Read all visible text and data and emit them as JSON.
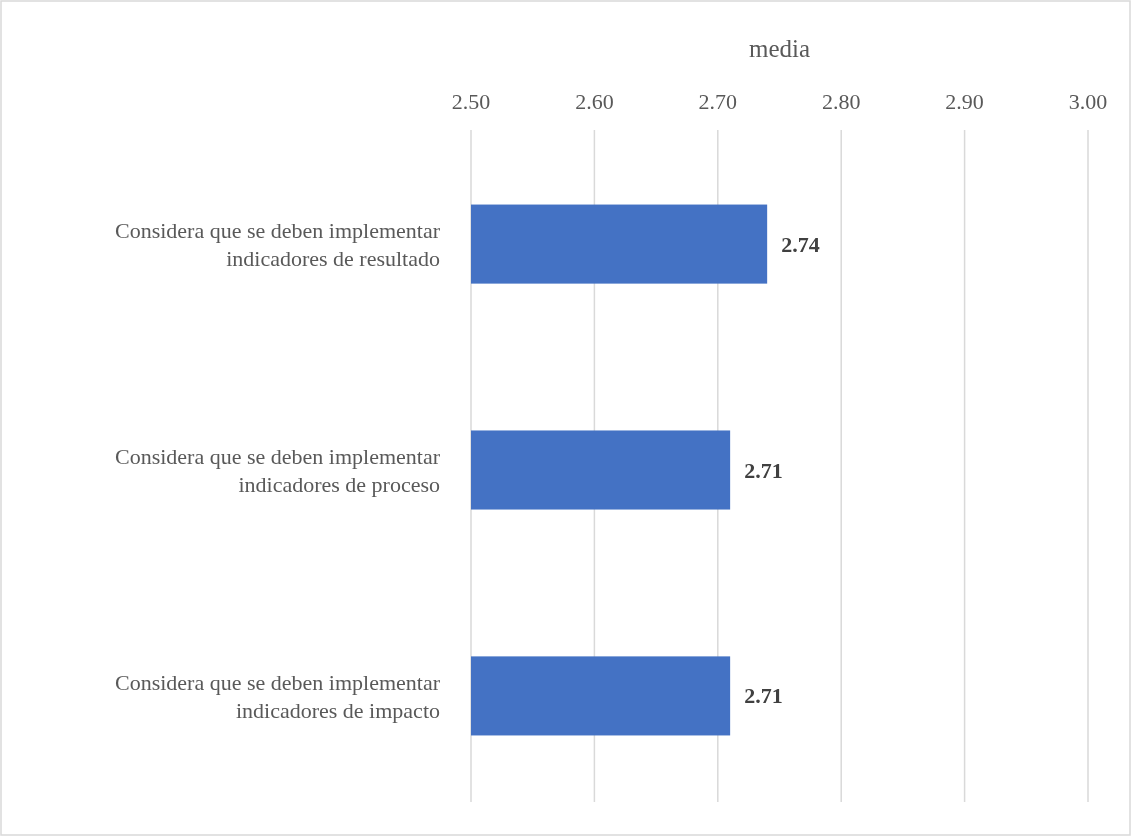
{
  "chart_data": {
    "type": "bar",
    "orientation": "horizontal",
    "xlabel": "media",
    "categories": [
      "Considera que se deben implementar indicadores de resultado",
      "Considera que se deben implementar indicadores de proceso",
      "Considera que se deben implementar indicadores de impacto"
    ],
    "values": [
      2.74,
      2.71,
      2.71
    ],
    "color": "#4472c4",
    "xlim": [
      2.5,
      3.0
    ],
    "xticks": [
      {
        "value": 2.5,
        "label": "2.50"
      },
      {
        "value": 2.6,
        "label": "2.60"
      },
      {
        "value": 2.7,
        "label": "2.70"
      },
      {
        "value": 2.8,
        "label": "2.80"
      },
      {
        "value": 2.9,
        "label": "2.90"
      },
      {
        "value": 3.0,
        "label": "3.00"
      }
    ],
    "grid": "x",
    "data_labels": true
  }
}
